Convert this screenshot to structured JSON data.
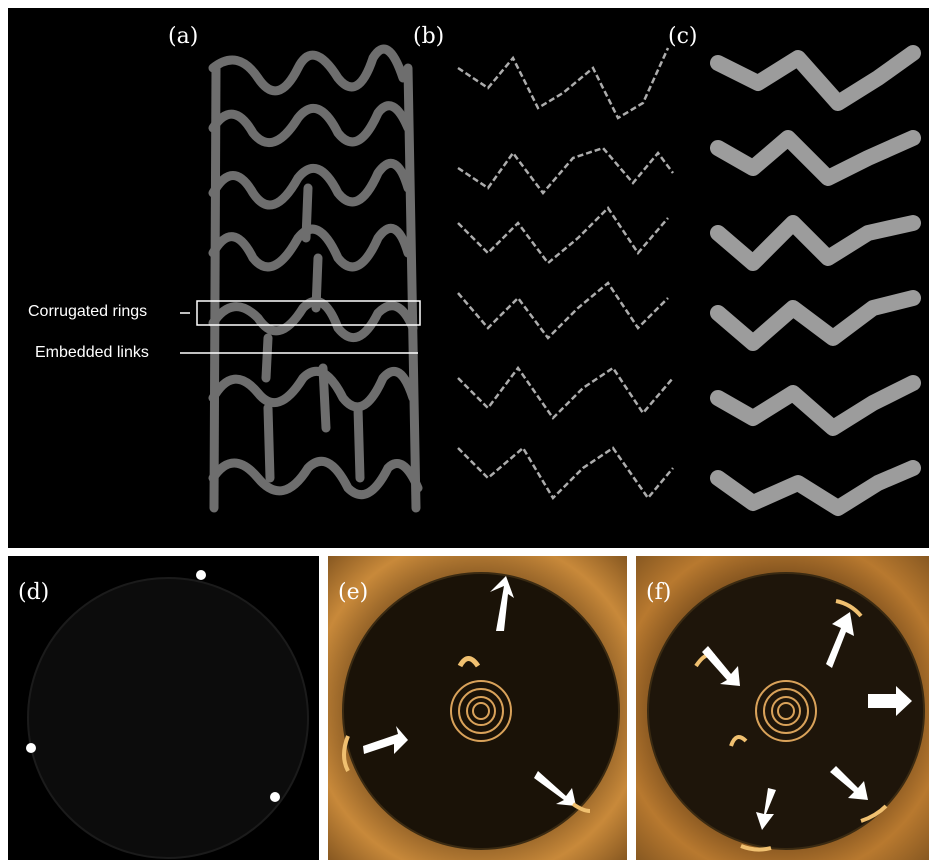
{
  "panels": {
    "a": {
      "label": "(a)"
    },
    "b": {
      "label": "(b)"
    },
    "c": {
      "label": "(c)"
    },
    "d": {
      "label": "(d)"
    },
    "e": {
      "label": "(e)"
    },
    "f": {
      "label": "(f)"
    }
  },
  "annotations": {
    "corrugated_rings": "Corrugated rings",
    "embedded_links": "Embedded links"
  },
  "colors": {
    "background": "#000000",
    "stent_strut": "#6e6e6e",
    "oct_tissue": "#c8893a",
    "oct_lumen": "#1a1207",
    "arrow": "#ffffff"
  }
}
